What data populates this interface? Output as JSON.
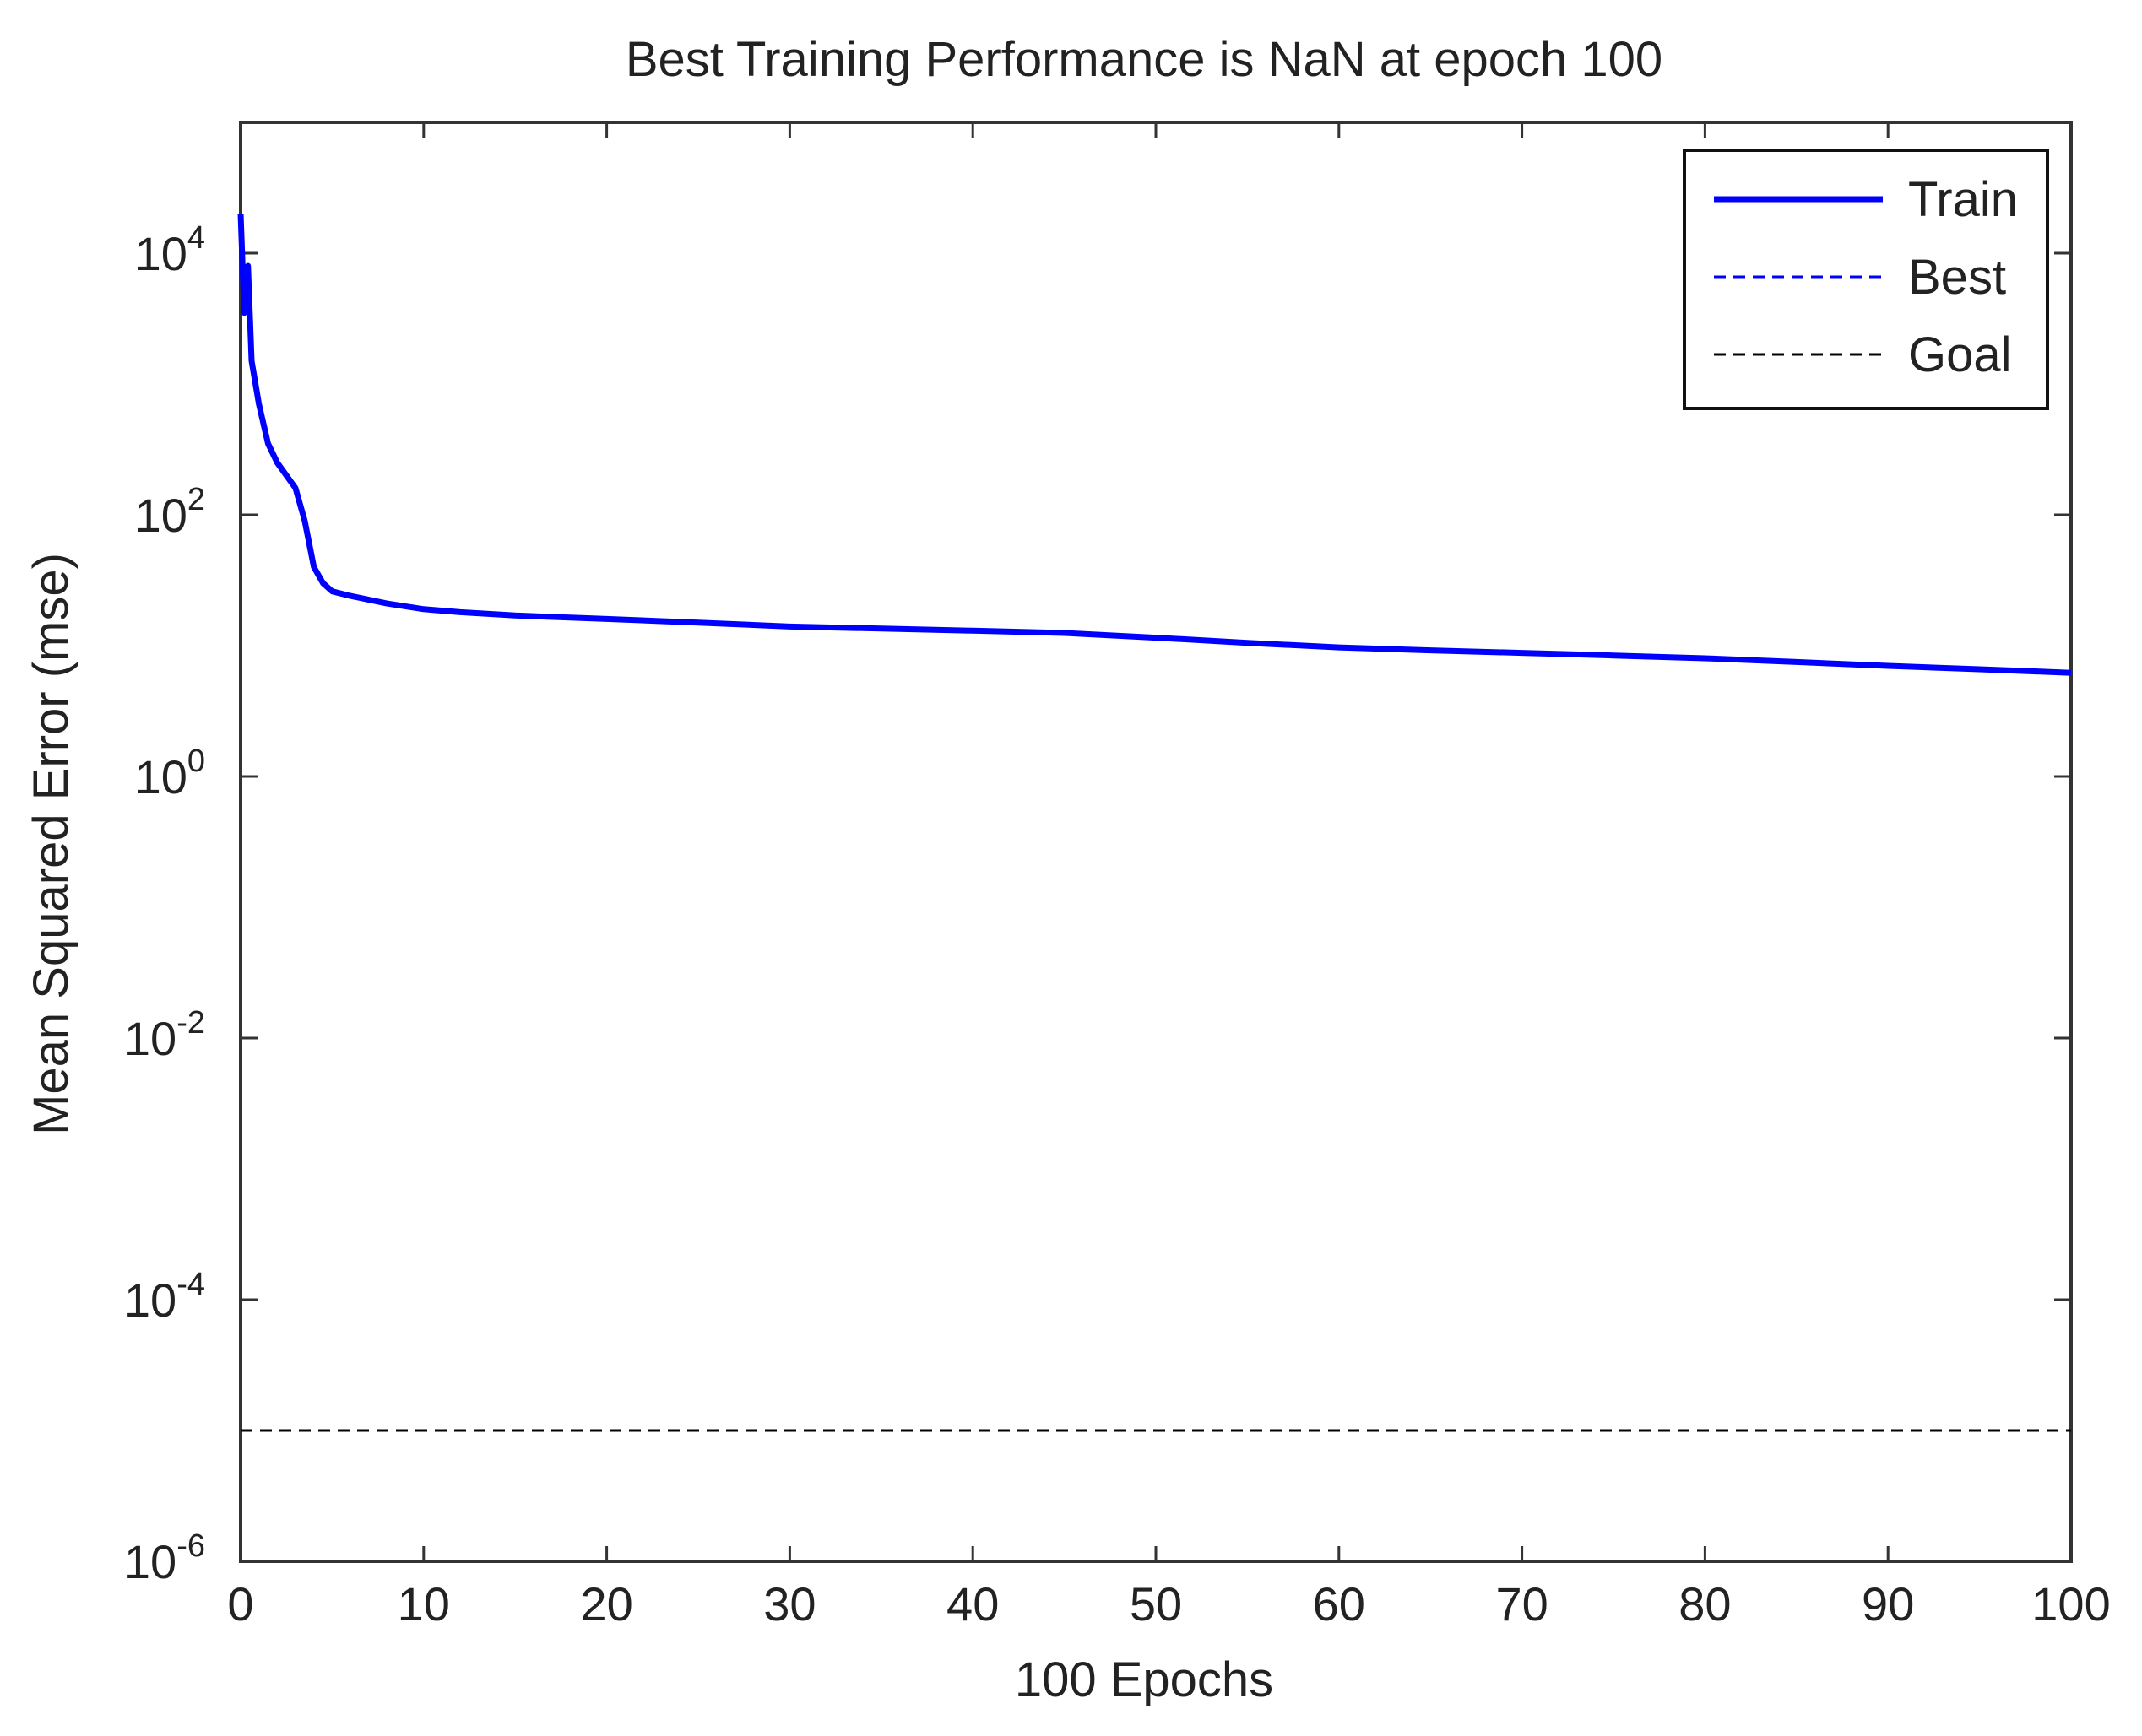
{
  "chart_data": {
    "type": "line",
    "title": "Best Training Performance is NaN at epoch 100",
    "xlabel": "100 Epochs",
    "ylabel": "Mean Squared Error  (mse)",
    "xlim": [
      0,
      100
    ],
    "ylim_exponent": [
      -6,
      5
    ],
    "yscale": "log",
    "grid": false,
    "legend_placement": "top-right",
    "x_ticks": [
      "0",
      "10",
      "20",
      "30",
      "40",
      "50",
      "60",
      "70",
      "80",
      "90",
      "100"
    ],
    "y_ticks": [
      {
        "base": "10",
        "exp": "4",
        "value": 10000
      },
      {
        "base": "10",
        "exp": "2",
        "value": 100
      },
      {
        "base": "10",
        "exp": "0",
        "value": 1
      },
      {
        "base": "10",
        "exp": "-2",
        "value": 0.01
      },
      {
        "base": "10",
        "exp": "-4",
        "value": 0.0001
      },
      {
        "base": "10",
        "exp": "-6",
        "value": 1e-06
      }
    ],
    "series": [
      {
        "name": "Train",
        "color": "#0000ff",
        "style": "solid",
        "x": [
          0,
          0.2,
          0.4,
          0.6,
          1,
          1.5,
          2,
          2.5,
          3,
          3.5,
          4,
          4.5,
          5,
          6,
          8,
          10,
          12,
          15,
          20,
          25,
          30,
          35,
          40,
          45,
          50,
          55,
          60,
          65,
          70,
          75,
          80,
          85,
          90,
          95,
          100
        ],
        "y": [
          20000,
          3500,
          8000,
          1500,
          700,
          350,
          250,
          200,
          160,
          90,
          40,
          30,
          26,
          24,
          21,
          19,
          18,
          17,
          16,
          15,
          14,
          13.5,
          13,
          12.5,
          11.5,
          10.5,
          9.7,
          9.2,
          8.8,
          8.4,
          8.0,
          7.5,
          7.0,
          6.6,
          6.2
        ]
      },
      {
        "name": "Best",
        "color": "#0000ff",
        "style": "dashed",
        "x": [],
        "y": []
      },
      {
        "name": "Goal",
        "color": "#000000",
        "style": "dashed",
        "x": [
          0,
          100
        ],
        "y": [
          1e-05,
          1e-05
        ]
      }
    ]
  }
}
